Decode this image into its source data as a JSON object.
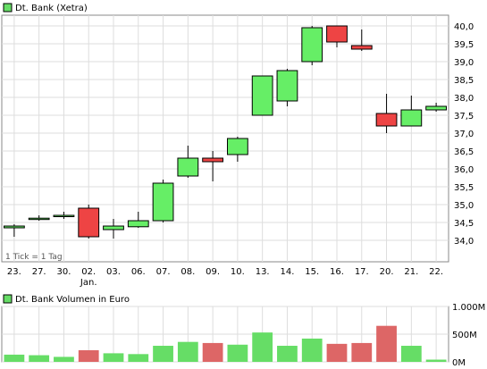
{
  "chart_data": [
    {
      "type": "candlestick",
      "title": "Dt. Bank (Xetra)",
      "legend_color": "#66dd66",
      "annotation": "1 Tick = 1 Tag",
      "ylim": [
        33.4,
        40.3
      ],
      "yticks": [
        "34,0",
        "34,5",
        "35,0",
        "35,5",
        "36,0",
        "36,5",
        "37,0",
        "37,5",
        "38,0",
        "38,5",
        "39,0",
        "39,5",
        "40,0"
      ],
      "x_tick_labels": [
        "23.",
        "27.",
        "30.",
        "02.",
        "03.",
        "06.",
        "07.",
        "08.",
        "09.",
        "10.",
        "13.",
        "14.",
        "15.",
        "16.",
        "17.",
        "20.",
        "21.",
        "22."
      ],
      "x_sub_label": "Jan.",
      "up_color": "#66ee66",
      "down_color": "#ee4444",
      "candles": [
        {
          "open": 34.35,
          "high": 34.45,
          "low": 34.1,
          "close": 34.4
        },
        {
          "open": 34.62,
          "high": 34.7,
          "low": 34.55,
          "close": 34.62
        },
        {
          "open": 34.7,
          "high": 34.8,
          "low": 34.6,
          "close": 34.7
        },
        {
          "open": 34.9,
          "high": 35.0,
          "low": 34.05,
          "close": 34.1
        },
        {
          "open": 34.3,
          "high": 34.6,
          "low": 34.05,
          "close": 34.4
        },
        {
          "open": 34.38,
          "high": 34.8,
          "low": 34.35,
          "close": 34.55
        },
        {
          "open": 34.55,
          "high": 35.7,
          "low": 34.5,
          "close": 35.6
        },
        {
          "open": 35.8,
          "high": 36.65,
          "low": 35.75,
          "close": 36.3
        },
        {
          "open": 36.3,
          "high": 36.5,
          "low": 35.65,
          "close": 36.2
        },
        {
          "open": 36.4,
          "high": 36.9,
          "low": 36.2,
          "close": 36.85
        },
        {
          "open": 37.5,
          "high": 38.6,
          "low": 37.5,
          "close": 38.6
        },
        {
          "open": 37.9,
          "high": 38.8,
          "low": 37.75,
          "close": 38.75
        },
        {
          "open": 39.0,
          "high": 40.0,
          "low": 38.9,
          "close": 39.95
        },
        {
          "open": 40.0,
          "high": 40.0,
          "low": 39.4,
          "close": 39.55
        },
        {
          "open": 39.45,
          "high": 39.9,
          "low": 39.3,
          "close": 39.35
        },
        {
          "open": 37.55,
          "high": 38.1,
          "low": 37.0,
          "close": 37.2
        },
        {
          "open": 37.2,
          "high": 38.05,
          "low": 37.2,
          "close": 37.65
        },
        {
          "open": 37.65,
          "high": 37.85,
          "low": 37.6,
          "close": 37.75
        }
      ]
    },
    {
      "type": "bar",
      "title": "Dt. Bank Volumen in Euro",
      "legend_color": "#66dd66",
      "ylim": [
        0,
        1000
      ],
      "yticks": [
        {
          "value": 0,
          "label": "0M"
        },
        {
          "value": 500,
          "label": "500M"
        },
        {
          "value": 1000,
          "label": "1.000M"
        }
      ],
      "up_color": "#66dd66",
      "down_color": "#dd6666",
      "values": [
        130,
        120,
        90,
        210,
        155,
        140,
        290,
        360,
        340,
        310,
        530,
        290,
        420,
        325,
        340,
        650,
        290,
        40
      ],
      "directions": [
        "up",
        "up",
        "up",
        "down",
        "up",
        "up",
        "up",
        "up",
        "down",
        "up",
        "up",
        "up",
        "up",
        "down",
        "down",
        "down",
        "up",
        "up"
      ]
    }
  ]
}
